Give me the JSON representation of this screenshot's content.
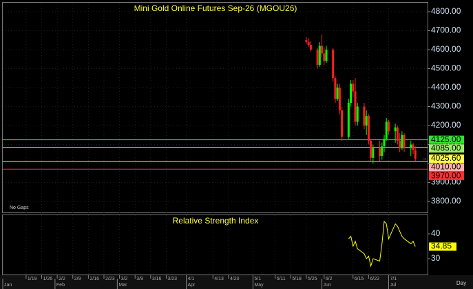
{
  "chart_data": {
    "type": "candlestick",
    "title": "Mini Gold Online Futures Sep-26 (MGOU26)",
    "note": "No Gaps",
    "x_unit_label": "Day",
    "xlim": [
      8.5,
      199.5
    ],
    "xticks": [
      {
        "value": 19,
        "label": "1/19"
      },
      {
        "value": 26,
        "label": "1/26"
      },
      {
        "value": 33,
        "label": "2/2"
      },
      {
        "value": 40,
        "label": "2/9"
      },
      {
        "value": 47,
        "label": "2/16"
      },
      {
        "value": 54,
        "label": "2/23"
      },
      {
        "value": 61,
        "label": "3/2"
      },
      {
        "value": 68,
        "label": "3/9"
      },
      {
        "value": 75,
        "label": "3/16"
      },
      {
        "value": 82,
        "label": "3/23"
      },
      {
        "value": 91,
        "label": "4/1"
      },
      {
        "value": 103,
        "label": "4/13"
      },
      {
        "value": 110,
        "label": "4/20"
      },
      {
        "value": 121,
        "label": "5/1"
      },
      {
        "value": 131,
        "label": "5/11"
      },
      {
        "value": 138,
        "label": "5/18"
      },
      {
        "value": 145,
        "label": "5/25"
      },
      {
        "value": 153,
        "label": "6/2"
      },
      {
        "value": 166,
        "label": "6/15"
      },
      {
        "value": 173,
        "label": "6/22"
      },
      {
        "value": 182,
        "label": "7/1"
      }
    ],
    "month_ticks": [
      {
        "value": 1,
        "label": "Jan"
      },
      {
        "value": 32,
        "label": "Feb"
      },
      {
        "value": 60,
        "label": "Mar"
      },
      {
        "value": 91,
        "label": "Apr"
      },
      {
        "value": 121,
        "label": "May"
      },
      {
        "value": 152,
        "label": "Jun"
      },
      {
        "value": 182,
        "label": "Jul"
      }
    ],
    "ylim": [
      3742,
      4847
    ],
    "yticks": [
      {
        "value": 3800,
        "label": "3800.00"
      },
      {
        "value": 3900,
        "label": "3900.00"
      },
      {
        "value": 4000,
        "label": "4000.00"
      },
      {
        "value": 4100,
        "label": "4100.00"
      },
      {
        "value": 4200,
        "label": "4200.00"
      },
      {
        "value": 4300,
        "label": "4300.00"
      },
      {
        "value": 4400,
        "label": "4400.00"
      },
      {
        "value": 4500,
        "label": "4500.00"
      },
      {
        "value": 4600,
        "label": "4600.00"
      },
      {
        "value": 4700,
        "label": "4700.00"
      },
      {
        "value": 4800,
        "label": "4800.00"
      }
    ],
    "up_color": "#00ff00",
    "down_color": "#ff2020",
    "candles": {
      "x": [
        145,
        146,
        147,
        150,
        151,
        152,
        153,
        154,
        157,
        158,
        159,
        160,
        161,
        164,
        165,
        166,
        167,
        168,
        171,
        172,
        173,
        174,
        175,
        178,
        179,
        180,
        181,
        182,
        185,
        186,
        187,
        188,
        189,
        192,
        193,
        194
      ],
      "open": [
        4650,
        4640,
        4625,
        4600,
        4520,
        4620,
        4580,
        4540,
        4600,
        4450,
        4340,
        4400,
        4280,
        4140,
        4320,
        4420,
        4380,
        4220,
        4300,
        4200,
        4250,
        4120,
        4030,
        4080,
        4040,
        4090,
        4130,
        4220,
        4170,
        4190,
        4120,
        4080,
        4150,
        4080,
        4100,
        4070
      ],
      "high": [
        4665,
        4660,
        4645,
        4610,
        4640,
        4680,
        4610,
        4620,
        4610,
        4460,
        4420,
        4420,
        4300,
        4340,
        4440,
        4440,
        4450,
        4320,
        4320,
        4280,
        4260,
        4130,
        4100,
        4120,
        4110,
        4150,
        4240,
        4230,
        4210,
        4200,
        4160,
        4170,
        4160,
        4120,
        4110,
        4090
      ],
      "low": [
        4630,
        4615,
        4590,
        4500,
        4510,
        4560,
        4520,
        4530,
        4430,
        4320,
        4330,
        4260,
        4120,
        4130,
        4300,
        4350,
        4200,
        4200,
        4180,
        4150,
        4100,
        4010,
        4000,
        4010,
        4020,
        4060,
        4120,
        4150,
        4110,
        4100,
        4060,
        4070,
        4060,
        4040,
        4050,
        4010
      ],
      "close": [
        4640,
        4625,
        4600,
        4520,
        4620,
        4580,
        4540,
        4600,
        4450,
        4340,
        4400,
        4280,
        4140,
        4320,
        4420,
        4380,
        4220,
        4300,
        4200,
        4250,
        4120,
        4030,
        4080,
        4040,
        4090,
        4130,
        4220,
        4170,
        4190,
        4120,
        4080,
        4150,
        4080,
        4100,
        4070,
        4025.6
      ]
    },
    "last_price_label": "4025.60",
    "last_price_color": "#ffff40",
    "levels": [
      {
        "value": 4125,
        "label": "4125.00",
        "color": "#33dd33"
      },
      {
        "value": 4085,
        "label": "4085.00",
        "color": "#99ee66"
      },
      {
        "value": 4010,
        "label": "4010.00",
        "color": "#ffb0b0"
      },
      {
        "value": 3970,
        "label": "3970.00",
        "color": "#ff3030"
      }
    ],
    "rsi": {
      "title": "Relative Strength Index",
      "color": "#ffff00",
      "ylim": [
        23.6,
        47.5
      ],
      "yticks": [
        30,
        40
      ],
      "x": [
        164,
        165,
        166,
        167,
        168,
        171,
        172,
        173,
        174,
        175,
        178,
        179,
        180,
        181,
        182,
        185,
        186,
        187,
        188,
        189,
        192,
        193,
        194
      ],
      "values": [
        38,
        39,
        35,
        37,
        34,
        32,
        30,
        31,
        27,
        30,
        29,
        36,
        45,
        44,
        38,
        44,
        43,
        41,
        39,
        38,
        36,
        37,
        34.85
      ]
    }
  }
}
